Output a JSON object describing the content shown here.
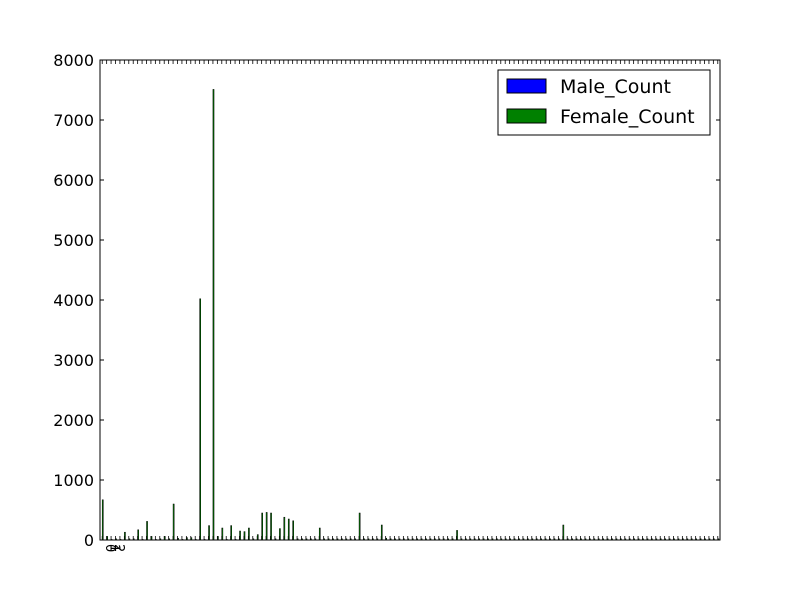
{
  "chart_data": {
    "type": "bar",
    "title": "",
    "xlabel": "",
    "ylabel": "",
    "ylim": [
      0,
      8000
    ],
    "yticks": [
      0,
      1000,
      2000,
      3000,
      4000,
      5000,
      6000,
      7000,
      8000
    ],
    "grid": false,
    "legend_position": "top-right",
    "x_tick_labels_visible": [
      "0",
      "1",
      "2"
    ],
    "categories_count": 140,
    "series": [
      {
        "name": "Male_Count",
        "color": "#0000ff",
        "values": [
          0,
          0,
          0,
          0,
          0,
          0,
          0,
          0,
          0,
          0,
          0,
          0,
          0,
          0,
          0,
          0,
          0,
          0,
          0,
          0,
          0,
          0,
          0,
          0,
          0,
          0,
          0,
          0,
          0,
          0,
          0,
          0,
          0,
          0,
          0,
          0,
          0,
          0,
          0,
          0,
          0,
          0,
          0,
          0,
          0,
          0,
          0,
          0,
          0,
          0,
          0,
          0,
          0,
          0,
          0,
          0,
          0,
          0,
          0,
          0,
          0,
          0,
          0,
          0,
          0,
          0,
          0,
          0,
          0,
          0,
          0,
          0,
          0,
          0,
          0,
          0,
          0,
          0,
          0,
          0,
          0,
          0,
          0,
          0,
          0,
          0,
          0,
          0,
          0,
          0,
          0,
          0,
          0,
          0,
          0,
          0,
          0,
          0,
          0,
          0,
          0,
          0,
          0,
          0,
          0,
          0,
          0,
          0,
          0,
          0,
          0,
          0,
          0,
          0,
          0,
          0,
          0,
          0,
          0,
          0,
          0,
          0,
          0,
          0,
          0,
          0,
          0,
          0,
          0,
          0,
          0,
          0,
          0,
          0,
          0,
          0,
          0,
          0,
          0,
          0
        ]
      },
      {
        "name": "Female_Count",
        "color": "#008000",
        "values": [
          670,
          60,
          10,
          20,
          10,
          130,
          20,
          20,
          170,
          10,
          310,
          60,
          10,
          20,
          60,
          20,
          600,
          30,
          10,
          40,
          40,
          10,
          4020,
          10,
          240,
          7510,
          60,
          200,
          10,
          240,
          10,
          150,
          140,
          200,
          20,
          90,
          450,
          460,
          450,
          20,
          190,
          380,
          350,
          320,
          20,
          20,
          20,
          20,
          20,
          200,
          20,
          20,
          20,
          20,
          20,
          20,
          20,
          20,
          450,
          20,
          20,
          20,
          20,
          250,
          30,
          20,
          20,
          20,
          20,
          20,
          20,
          20,
          20,
          20,
          20,
          20,
          20,
          20,
          20,
          20,
          160,
          20,
          20,
          20,
          20,
          20,
          20,
          20,
          20,
          20,
          20,
          20,
          20,
          20,
          20,
          20,
          20,
          20,
          20,
          20,
          20,
          20,
          20,
          20,
          250,
          20,
          20,
          20,
          20,
          20,
          20,
          20,
          20,
          20,
          20,
          20,
          20,
          20,
          20,
          20,
          20,
          20,
          20,
          20,
          20,
          20,
          20,
          20,
          20,
          20,
          20,
          20,
          20,
          20,
          20,
          20,
          20,
          20,
          20,
          20
        ]
      }
    ]
  }
}
